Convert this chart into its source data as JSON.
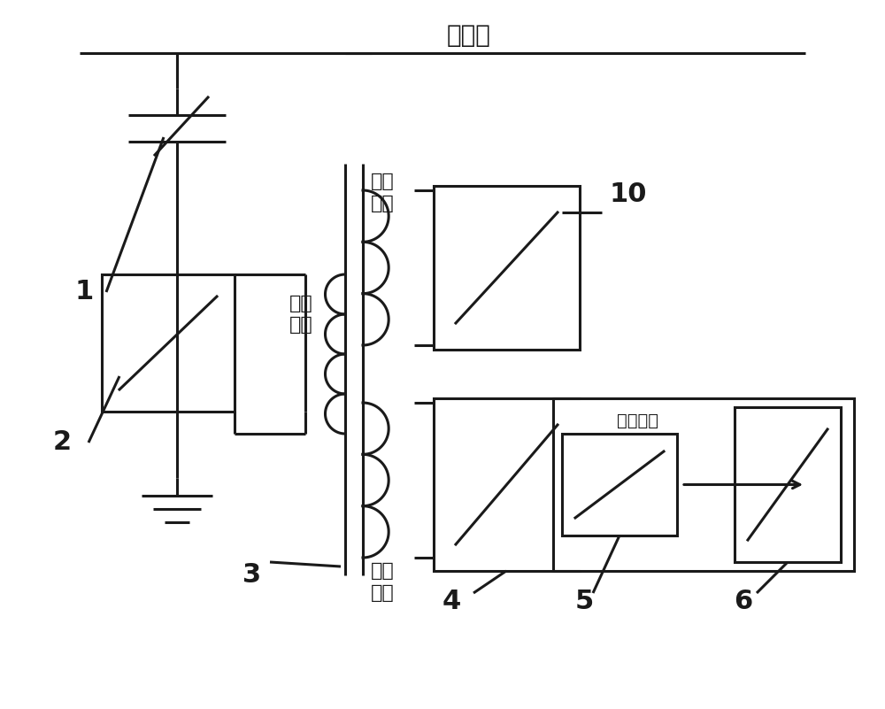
{
  "title": "高压端",
  "background_color": "#ffffff",
  "line_color": "#1a1a1a",
  "line_width": 2.2,
  "label_1": "1",
  "label_2": "2",
  "label_3": "3",
  "label_4": "4",
  "label_5": "5",
  "label_6": "6",
  "label_10": "10",
  "text_winding1": "第一\n绕组",
  "text_winding2": "第二\n绕组",
  "text_winding3": "第三\n绕组",
  "text_control": "控制信号",
  "font_size_title": 20,
  "font_size_label": 22,
  "font_size_text": 16
}
